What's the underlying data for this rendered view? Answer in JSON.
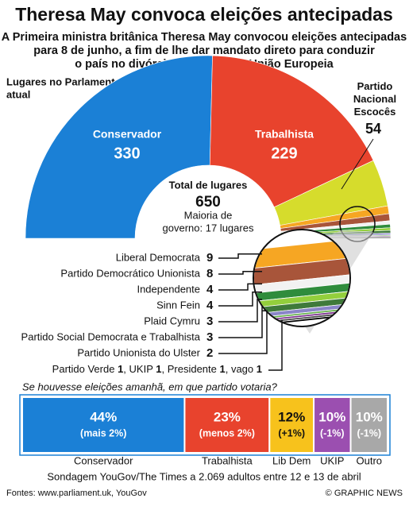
{
  "header": {
    "title": "Theresa May convoca eleições antecipadas",
    "subtitle": [
      "A Primeira ministra britânica Theresa May convocou eleições antecipadas",
      "para 8 de junho, a fim de lhe dar mandato direto para conduzir",
      "o país no divórcio Brexit com a União Europeia"
    ]
  },
  "chart_data": [
    {
      "type": "semi-donut",
      "title": [
        "Lugares no Parlamento",
        "atual"
      ],
      "total_label": "Total de lugares",
      "total": 650,
      "annotation": [
        "Maioria de",
        "governo: 17 lugares"
      ],
      "categories": [
        "Conservador",
        "Trabalhista",
        "Partido Nacional Escocês",
        "Liberal Democrata",
        "Partido Democrático Unionista",
        "Independente",
        "Sinn Fein",
        "Plaid Cymru",
        "Partido Social Democrata e Trabalhista",
        "Partido Unionista do Ulster",
        "Partido Verde",
        "UKIP",
        "Presidente",
        "vago"
      ],
      "values": [
        330,
        229,
        54,
        9,
        8,
        4,
        4,
        3,
        3,
        2,
        1,
        1,
        1,
        1
      ],
      "colors": [
        "#1b80d6",
        "#e8432d",
        "#d6dc2c",
        "#f6a623",
        "#a8553a",
        "#f2f2f2",
        "#2f8c3c",
        "#93cf3c",
        "#3f7a3a",
        "#8a86c8",
        "#64b04a",
        "#7b2d8e",
        "#444444",
        "#000000"
      ]
    },
    {
      "type": "stacked-bar",
      "title": "Se houvesse eleições amanhã, em que partido votaria?",
      "categories": [
        "Conservador",
        "Trabalhista",
        "Lib Dem",
        "UKIP",
        "Outro"
      ],
      "values": [
        44,
        23,
        12,
        10,
        10
      ],
      "value_labels": [
        "44%",
        "23%",
        "12%",
        "10%",
        "10%"
      ],
      "changes": [
        "(mais 2%)",
        "(menos 2%)",
        "(+1%)",
        "(-1%)",
        "(-1%)"
      ],
      "colors": [
        "#1b80d6",
        "#e8432d",
        "#f7c21c",
        "#9b4fb0",
        "#a8a8a8"
      ],
      "note": "Sondagem YouGov/The Times a 2.069 adultos entre 12 e 13 de abril"
    }
  ],
  "footer": {
    "source": "Fontes: www.parliament.uk, YouGov",
    "credit": "© GRAPHIC NEWS"
  }
}
